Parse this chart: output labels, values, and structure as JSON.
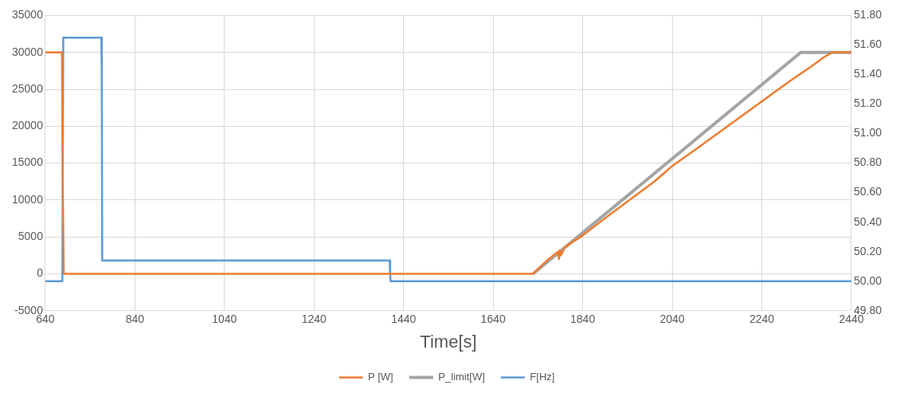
{
  "chart_data": {
    "type": "line",
    "xlabel": "Time[s]",
    "xlim": [
      640,
      2440
    ],
    "xticks": [
      640,
      840,
      1040,
      1240,
      1440,
      1640,
      1840,
      2040,
      2240,
      2440
    ],
    "ylim": [
      -5000,
      35000
    ],
    "yticks": [
      -5000,
      0,
      5000,
      10000,
      15000,
      20000,
      25000,
      30000,
      35000
    ],
    "y2lim": [
      49.8,
      51.8
    ],
    "y2ticks": [
      {
        "value": 49.8,
        "label": "49.80"
      },
      {
        "value": 50,
        "label": "50.00"
      },
      {
        "value": 50.2,
        "label": "50.20"
      },
      {
        "value": 50.4,
        "label": "50.40"
      },
      {
        "value": 50.6,
        "label": "50.60"
      },
      {
        "value": 50.8,
        "label": "50.80"
      },
      {
        "value": 51,
        "label": "51.00"
      },
      {
        "value": 51.2,
        "label": "51.20"
      },
      {
        "value": 51.4,
        "label": "51.40"
      },
      {
        "value": 51.6,
        "label": "51.60"
      },
      {
        "value": 51.8,
        "label": "51.80"
      }
    ],
    "grid": true,
    "legend": "bottom",
    "marker": "none",
    "line_style": "solid",
    "series": [
      {
        "name": "P [W]",
        "color": "#ed7d31",
        "x": [
          640,
          677,
          679,
          681,
          1729,
          1760,
          1785,
          1787,
          1789,
          1791,
          1800,
          1840,
          1900,
          2000,
          2040,
          2100,
          2200,
          2300,
          2360,
          2380,
          2398,
          2440
        ],
        "values": [
          30000,
          30000,
          12000,
          0,
          0,
          1800,
          3000,
          2000,
          3200,
          2500,
          3600,
          5200,
          8000,
          12500,
          14600,
          17200,
          21600,
          26000,
          28500,
          29400,
          30000,
          30000
        ]
      },
      {
        "name": "P_limit[W]",
        "color": "#a5a5a5",
        "x": [
          1729,
          2327,
          2440
        ],
        "values": [
          0,
          30000,
          30000
        ]
      },
      {
        "name": "F[Hz]",
        "color": "#5b9bd5",
        "axis": "y2",
        "x": [
          640,
          678,
          680,
          765,
          766,
          767,
          1409,
          1410,
          1411,
          2440
        ],
        "values": [
          50,
          50,
          51.65,
          51.65,
          51.43,
          50.14,
          50.14,
          50.05,
          50,
          50
        ]
      }
    ]
  }
}
